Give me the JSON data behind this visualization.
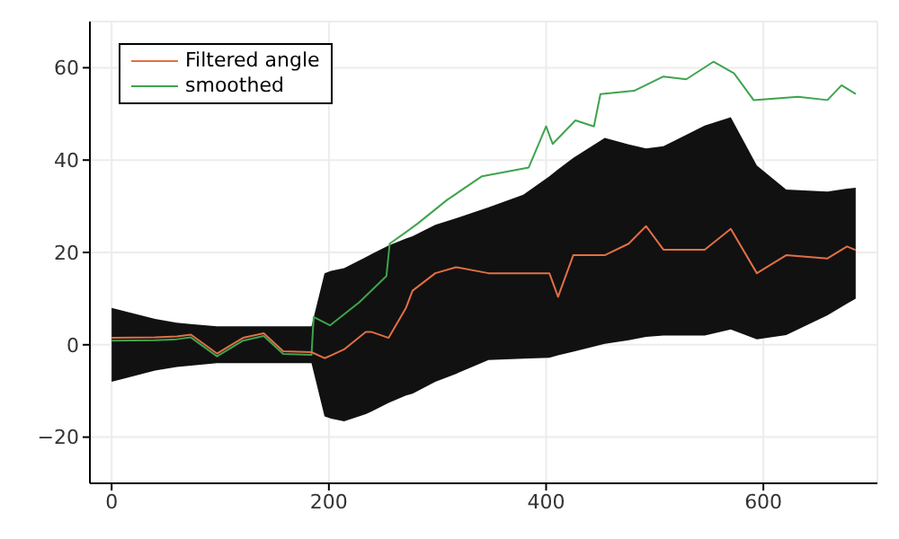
{
  "chart_data": {
    "type": "line",
    "xlim": [
      -20,
      705
    ],
    "ylim": [
      -30,
      70
    ],
    "xticks": [
      0,
      200,
      400,
      600
    ],
    "yticks": [
      -20,
      0,
      20,
      40,
      60
    ],
    "grid": true,
    "legend": "top left",
    "series": [
      {
        "name": "Filtered angle",
        "color": "#e26f46",
        "x": [
          0,
          40,
          60,
          73,
          97,
          121,
          140,
          158,
          184,
          196,
          202,
          214,
          234,
          239,
          255,
          271,
          277,
          298,
          317,
          347,
          379,
          403,
          411,
          425,
          454,
          476,
          492,
          508,
          546,
          570,
          594,
          621,
          659,
          677,
          685
        ],
        "values": [
          1.5,
          1.6,
          1.8,
          2.2,
          -1.9,
          1.5,
          2.5,
          -1.4,
          -1.6,
          -2.9,
          -2.3,
          -1,
          2.8,
          2.8,
          1.5,
          8,
          11.7,
          15.5,
          16.8,
          15.5,
          15.5,
          15.5,
          10.4,
          19.4,
          19.4,
          21.9,
          25.7,
          20.6,
          20.6,
          25.1,
          15.5,
          19.4,
          18.7,
          21.3,
          20.5
        ],
        "lower": [
          -8,
          -5.6,
          -4.8,
          -4.5,
          -4,
          -4,
          -4,
          -4,
          -4,
          -15.5,
          -16,
          -16.6,
          -15,
          -14.5,
          -12.6,
          -11,
          -10.6,
          -8,
          -6.3,
          -3.3,
          -3,
          -2.8,
          -2.3,
          -1.5,
          0.2,
          1,
          1.7,
          2,
          2,
          3.3,
          1.2,
          2.1,
          6.4,
          8.9,
          10
        ],
        "upper": [
          8,
          5.6,
          4.8,
          4.5,
          4,
          4,
          4,
          4,
          4,
          15.5,
          16,
          16.6,
          19,
          19.6,
          21.5,
          23,
          23.5,
          26,
          27.4,
          29.8,
          32.5,
          36.5,
          38,
          40.5,
          44.8,
          43.4,
          42.5,
          43,
          47.5,
          49.3,
          38.8,
          33.6,
          33.2,
          33.8,
          34
        ]
      },
      {
        "name": "smoothed",
        "color": "#3ea44e",
        "x": [
          0,
          40,
          60,
          73,
          97,
          121,
          140,
          158,
          184,
          186,
          201,
          228,
          253,
          256,
          271,
          282,
          309,
          341,
          384,
          400,
          406,
          427,
          444,
          450,
          481,
          508,
          529,
          554,
          573,
          591,
          632,
          659,
          672,
          685
        ],
        "values": [
          0.9,
          1,
          1.2,
          1.6,
          -2.5,
          0.9,
          1.9,
          -2,
          -2.2,
          6,
          4.2,
          9.2,
          14.9,
          21.9,
          24.4,
          26.3,
          31.4,
          36.5,
          38.4,
          47.3,
          43.5,
          48.6,
          47.3,
          54.3,
          55,
          58.1,
          57.5,
          61.3,
          58.8,
          53,
          53.7,
          53,
          56.2,
          54.3
        ]
      }
    ]
  }
}
